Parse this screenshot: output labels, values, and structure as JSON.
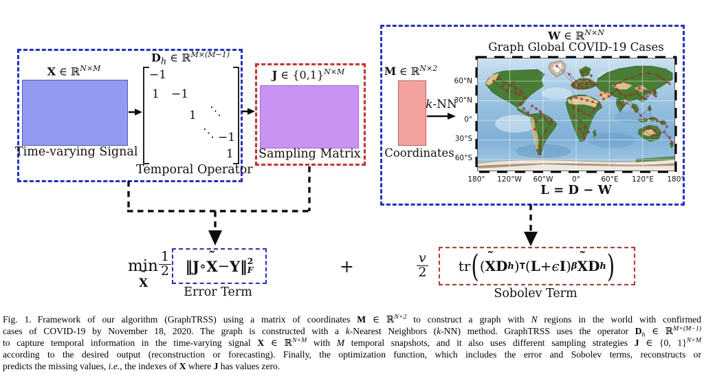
{
  "colors": {
    "blue_dash": "#1d2cee",
    "red_dash": "#e32b24",
    "signal_fill": "#939af0",
    "signal_border": "#4d55cc",
    "sampling_fill": "#c893f2",
    "sampling_border": "#a465e6",
    "coords_fill": "#f3a2a0",
    "coords_border": "#d45a55",
    "node_red": "#e8221c",
    "edge_dark": "#2a2a2a"
  },
  "diagram": {
    "left_box": {
      "signal_x": "X",
      "signal_mid": " ∈ ℝ",
      "signal_sup": "N×M",
      "signal_caption": "Time-varying Signal",
      "op_d": "D",
      "op_h": "h",
      "op_mid": " ∈ ℝ",
      "op_sup": "M×(M−1)",
      "matrix": {
        "e1": "−1",
        "e2": "1",
        "e3": "−1",
        "e4": "1",
        "e5": "⋱",
        "e6": "⋱",
        "e7": "−1",
        "e8": "1"
      },
      "op_caption": "Temporal Operator"
    },
    "sampling_box": {
      "j": "J",
      "mid": " ∈ {0,1}",
      "sup": "N×M",
      "caption": "Sampling Matrix"
    },
    "graph_box": {
      "w": "W",
      "w_mid": " ∈ ℝ",
      "w_sup": "N×N",
      "title": "Graph Global COVID-19 Cases",
      "m": "M",
      "m_mid": " ∈ ℝ",
      "m_sup": "N×2",
      "knn_k": "k",
      "knn_rest": "-NN",
      "coords_caption": "Coordinates",
      "laplacian": "L = D − W",
      "map": {
        "lat_labels": [
          "60°N",
          "30°N",
          "0°",
          "30°S",
          "60°S"
        ],
        "lon_labels": [
          "180°",
          "120°W",
          "60°W",
          "0°",
          "60°E",
          "120°E",
          "180°"
        ]
      }
    }
  },
  "formula": {
    "plus": "+",
    "error": {
      "min": "min",
      "argmin": "X",
      "tilde": "˜",
      "num": "1",
      "den": "2",
      "lnorm": "‖",
      "j": "J",
      "ring": " ∘ ",
      "x": "X",
      "minus": " − ",
      "y": "Y",
      "rnorm": "‖",
      "sup2": "2",
      "subF": "F",
      "label": "Error Term"
    },
    "sobolev": {
      "num": "v",
      "den": "2",
      "tr": "tr",
      "lp1": "(",
      "x1": "X",
      "d1": "D",
      "h1": "h",
      "rp1": ")",
      "transpose": "T",
      "lp2": "(",
      "l": "L",
      "plus": " + ",
      "eps": "ϵ",
      "i": "I",
      "rp2": ")",
      "beta": "β",
      "x2": "X",
      "d2": "D",
      "h2": "h",
      "label": "Sobolev Term"
    }
  },
  "caption": {
    "lines": [
      [
        {
          "t": "Fig. 1.",
          "s": "n gap"
        },
        {
          "t": "Framework of our algorithm (GraphTRSS) using a matrix of coordinates ",
          "s": "n"
        },
        {
          "t": "M",
          "s": "b"
        },
        {
          "t": " ∈ ℝ",
          "s": "n"
        },
        {
          "t": "N×2",
          "s": "sup"
        },
        {
          "t": " to construct a graph with ",
          "s": "n"
        },
        {
          "t": "N",
          "s": "i"
        },
        {
          "t": " regions in the world with confirmed",
          "s": "n"
        }
      ],
      [
        {
          "t": "cases of COVID-19 by November 18, 2020. The graph is constructed with a ",
          "s": "n"
        },
        {
          "t": "k",
          "s": "i"
        },
        {
          "t": "-Nearest Neighbors (",
          "s": "n"
        },
        {
          "t": "k",
          "s": "i"
        },
        {
          "t": "-NN) method. GraphTRSS uses the operator ",
          "s": "n"
        },
        {
          "t": "D",
          "s": "b"
        },
        {
          "t": "h",
          "s": "subi"
        },
        {
          "t": " ∈ ℝ",
          "s": "n"
        },
        {
          "t": "M×(M−1)",
          "s": "sup"
        }
      ],
      [
        {
          "t": "to capture temporal information in the time-varying signal ",
          "s": "n"
        },
        {
          "t": "X",
          "s": "b"
        },
        {
          "t": " ∈ ℝ",
          "s": "n"
        },
        {
          "t": "N×M",
          "s": "sup"
        },
        {
          "t": " with ",
          "s": "n"
        },
        {
          "t": "M",
          "s": "i"
        },
        {
          "t": " temporal snapshots, and it also uses different sampling strategies ",
          "s": "n"
        },
        {
          "t": "J",
          "s": "b"
        },
        {
          "t": " ∈ {0, 1}",
          "s": "n"
        },
        {
          "t": "N×M",
          "s": "sup"
        }
      ],
      [
        {
          "t": "according to the desired output (reconstruction or forecasting). Finally, the optimization function, which includes the error and Sobolev terms, reconstructs or",
          "s": "n"
        }
      ],
      [
        {
          "t": "predicts the missing values, ",
          "s": "n"
        },
        {
          "t": "i.e.",
          "s": "i"
        },
        {
          "t": ", the indexes of ",
          "s": "n"
        },
        {
          "t": "X",
          "s": "b"
        },
        {
          "t": " where ",
          "s": "n"
        },
        {
          "t": "J",
          "s": "b"
        },
        {
          "t": " has values zero.",
          "s": "n"
        }
      ]
    ]
  }
}
